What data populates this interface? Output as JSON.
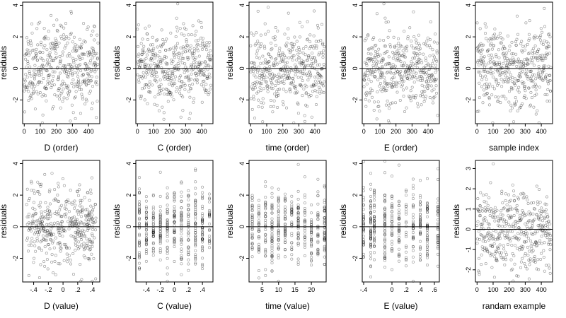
{
  "chart_data": [
    {
      "id": "d_order",
      "type": "scatter",
      "xlabel": "D (order)",
      "ylabel": "residuals",
      "xlim": [
        -10,
        470
      ],
      "ylim": [
        -3.5,
        4.2
      ],
      "xticks": [
        0,
        100,
        200,
        300,
        400
      ],
      "yticks": [
        -2,
        0,
        2,
        4
      ],
      "hline": 0,
      "x_kind": "index",
      "n": 420,
      "seed": 11,
      "sd": 1.25
    },
    {
      "id": "c_order",
      "type": "scatter",
      "xlabel": "C (order)",
      "ylabel": "residuals",
      "xlim": [
        -10,
        470
      ],
      "ylim": [
        -3.5,
        4.2
      ],
      "xticks": [
        0,
        100,
        200,
        300,
        400
      ],
      "yticks": [
        -2,
        0,
        2,
        4
      ],
      "hline": 0,
      "x_kind": "index",
      "n": 420,
      "seed": 23,
      "sd": 1.25
    },
    {
      "id": "time_order",
      "type": "scatter",
      "xlabel": "time (order)",
      "ylabel": "residuals",
      "xlim": [
        -10,
        470
      ],
      "ylim": [
        -3.5,
        4.2
      ],
      "xticks": [
        0,
        100,
        200,
        300,
        400
      ],
      "yticks": [
        -2,
        0,
        2,
        4
      ],
      "hline": 0,
      "x_kind": "index",
      "n": 420,
      "seed": 37,
      "sd": 1.25
    },
    {
      "id": "e_order",
      "type": "scatter",
      "xlabel": "E (order)",
      "ylabel": "residuals",
      "xlim": [
        -10,
        470
      ],
      "ylim": [
        -3.5,
        4.2
      ],
      "xticks": [
        0,
        100,
        200,
        300,
        400
      ],
      "yticks": [
        -2,
        0,
        2,
        4
      ],
      "hline": 0,
      "x_kind": "index",
      "n": 420,
      "seed": 41,
      "sd": 1.25
    },
    {
      "id": "sample_index",
      "type": "scatter",
      "xlabel": "sample index",
      "ylabel": "residuals",
      "xlim": [
        -10,
        470
      ],
      "ylim": [
        -3.5,
        4.2
      ],
      "xticks": [
        0,
        100,
        200,
        300,
        400
      ],
      "yticks": [
        -2,
        0,
        2,
        4
      ],
      "hline": 0,
      "x_kind": "index",
      "n": 420,
      "seed": 53,
      "sd": 1.25
    },
    {
      "id": "d_value",
      "type": "scatter",
      "xlabel": "D (value)",
      "ylabel": "residuals",
      "xlim": [
        -0.55,
        0.5
      ],
      "ylim": [
        -3.5,
        4.2
      ],
      "xticks": [
        -0.4,
        -0.2,
        0,
        0.2,
        0.4
      ],
      "yticks": [
        -2,
        0,
        2,
        4
      ],
      "hline": 0,
      "x_kind": "continuous",
      "n": 420,
      "seed": 61,
      "sd": 1.25
    },
    {
      "id": "c_value",
      "type": "scatter",
      "xlabel": "C (value)",
      "ylabel": "residuals",
      "xlim": [
        -0.55,
        0.55
      ],
      "ylim": [
        -3.5,
        4.2
      ],
      "xticks": [
        -0.4,
        -0.2,
        0,
        0.2,
        0.4
      ],
      "yticks": [
        -2,
        0,
        2,
        4
      ],
      "hline": 0,
      "x_kind": "levels",
      "levels": [
        -0.5,
        -0.4,
        -0.3,
        -0.2,
        -0.1,
        0,
        0.1,
        0.2,
        0.3,
        0.4,
        0.5
      ],
      "n": 420,
      "seed": 71,
      "sd": 1.25
    },
    {
      "id": "time_value",
      "type": "scatter",
      "xlabel": "time (value)",
      "ylabel": "residuals",
      "xlim": [
        1,
        24.5
      ],
      "ylim": [
        -3.5,
        4.2
      ],
      "xticks": [
        5,
        10,
        15,
        20
      ],
      "yticks": [
        -2,
        0,
        2,
        4
      ],
      "hline": 0,
      "x_kind": "levels",
      "levels": [
        2,
        4,
        6,
        8,
        10,
        12,
        14,
        16,
        18,
        20,
        22,
        24
      ],
      "n": 420,
      "seed": 83,
      "sd": 1.25
    },
    {
      "id": "e_value",
      "type": "scatter",
      "xlabel": "E (value)",
      "ylabel": "residuals",
      "xlim": [
        -0.42,
        0.67
      ],
      "ylim": [
        -3.5,
        4.2
      ],
      "xticks": [
        -0.4,
        0,
        0.2,
        0.4,
        0.6
      ],
      "yticks": [
        -2,
        0,
        2,
        4
      ],
      "hline": 0,
      "x_kind": "levels",
      "levels": [
        -0.4,
        -0.3,
        -0.25,
        -0.1,
        0,
        0.1,
        0.2,
        0.3,
        0.4,
        0.5,
        0.65
      ],
      "n": 420,
      "seed": 97,
      "sd": 1.25
    },
    {
      "id": "random_example",
      "type": "scatter",
      "xlabel": "randam example",
      "ylabel": "residuals",
      "xlim": [
        -10,
        470
      ],
      "ylim": [
        -2.6,
        3.4
      ],
      "xticks": [
        0,
        100,
        200,
        300,
        400
      ],
      "yticks": [
        -2,
        -1,
        0,
        1,
        2,
        3
      ],
      "hline": 0,
      "x_kind": "index",
      "n": 420,
      "seed": 101,
      "sd": 1.0
    }
  ]
}
